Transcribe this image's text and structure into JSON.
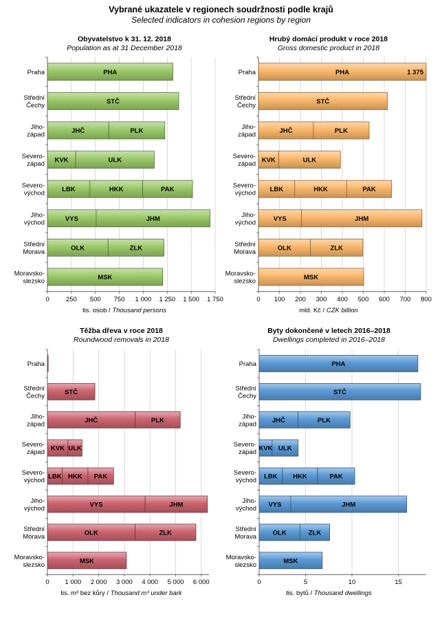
{
  "title": "Vybrané ukazatele v regionech soudržnosti  podle krajů",
  "subtitle": "Selected indicators in cohesion regions  by region",
  "regions": [
    [
      "Praha"
    ],
    [
      "Střední",
      "Čechy"
    ],
    [
      "Jiho-",
      "západ"
    ],
    [
      "Severo-",
      "západ"
    ],
    [
      "Severo-",
      "východ"
    ],
    [
      "Jiho-",
      "východ"
    ],
    [
      "Střední",
      "Morava"
    ],
    [
      "Moravsko-",
      "slezsko"
    ]
  ],
  "colors": {
    "population": "#9bc969",
    "gdp": "#f9b76b",
    "wood": "#cc6470",
    "dwellings": "#5b9ad6"
  },
  "chart_data": [
    {
      "type": "bar",
      "orientation": "horizontal",
      "stacked": true,
      "title": "Obyvatelstvo k 31. 12. 2018",
      "subtitle": "Population as at 31 December 2018",
      "xlabel_cz": "tis. osob / ",
      "xlabel_en": "Thousand persons",
      "xlim": [
        0,
        1750
      ],
      "ticks": [
        0,
        250,
        500,
        750,
        1000,
        1250,
        1500,
        1750
      ],
      "tick_labels": [
        "0",
        "250",
        "500",
        "750",
        "1 000",
        "1 250",
        "1 500",
        "1 750"
      ],
      "grid": true,
      "categories": [
        "Praha",
        "Střední Čechy",
        "Jihozápad",
        "Severozápad",
        "Severovýchod",
        "Jihovýchod",
        "Střední Morava",
        "Moravskoslezsko"
      ],
      "segments": [
        [
          {
            "label": "PHA",
            "value": 1309
          }
        ],
        [
          {
            "label": "STČ",
            "value": 1370
          }
        ],
        [
          {
            "label": "JHČ",
            "value": 640
          },
          {
            "label": "PLK",
            "value": 585
          }
        ],
        [
          {
            "label": "KVK",
            "value": 295
          },
          {
            "label": "ULK",
            "value": 820
          }
        ],
        [
          {
            "label": "LBK",
            "value": 443
          },
          {
            "label": "HKK",
            "value": 551
          },
          {
            "label": "PAK",
            "value": 520
          }
        ],
        [
          {
            "label": "VYS",
            "value": 509
          },
          {
            "label": "JHM",
            "value": 1188
          }
        ],
        [
          {
            "label": "OLK",
            "value": 633
          },
          {
            "label": "ZLK",
            "value": 583
          }
        ],
        [
          {
            "label": "MSK",
            "value": 1203
          }
        ]
      ],
      "value_label": null
    },
    {
      "type": "bar",
      "orientation": "horizontal",
      "stacked": true,
      "title": "Hrubý domácí produkt v roce 2018",
      "subtitle": "Gross domestic product in 2018",
      "xlabel_cz": "mld. Kč / ",
      "xlabel_en": "CZK billion",
      "xlim": [
        0,
        800
      ],
      "ticks": [
        0,
        100,
        200,
        300,
        400,
        500,
        600,
        700,
        800
      ],
      "tick_labels": [
        "0",
        "100",
        "200",
        "300",
        "400",
        "500",
        "600",
        "700",
        "800"
      ],
      "grid": true,
      "categories": [
        "Praha",
        "Střední Čechy",
        "Jihozápad",
        "Severozápad",
        "Severovýchod",
        "Jihovýchod",
        "Střední Morava",
        "Moravskoslezsko"
      ],
      "segments": [
        [
          {
            "label": "PHA",
            "value": 1375
          }
        ],
        [
          {
            "label": "STČ",
            "value": 615
          }
        ],
        [
          {
            "label": "JHČ",
            "value": 262
          },
          {
            "label": "PLK",
            "value": 266
          }
        ],
        [
          {
            "label": "KVK",
            "value": 97
          },
          {
            "label": "ULK",
            "value": 294
          }
        ],
        [
          {
            "label": "LBK",
            "value": 173
          },
          {
            "label": "HKK",
            "value": 248
          },
          {
            "label": "PAK",
            "value": 214
          }
        ],
        [
          {
            "label": "VYS",
            "value": 205
          },
          {
            "label": "JHM",
            "value": 575
          }
        ],
        [
          {
            "label": "OLK",
            "value": 248
          },
          {
            "label": "ZLK",
            "value": 250
          }
        ],
        [
          {
            "label": "MSK",
            "value": 502
          }
        ]
      ],
      "value_label": {
        "row": 0,
        "text": "1 375"
      }
    },
    {
      "type": "bar",
      "orientation": "horizontal",
      "stacked": true,
      "title": "Těžba dřeva v roce 2018",
      "subtitle": "Roundwood removals in 2018",
      "xlabel_cz": "tis. m³ bez kůry / ",
      "xlabel_en": "Thousand m³ under bark",
      "xlim": [
        0,
        6300
      ],
      "ticks": [
        0,
        1000,
        2000,
        3000,
        4000,
        5000,
        6000
      ],
      "tick_labels": [
        "0",
        "1 000",
        "2 000",
        "3 000",
        "4 000",
        "5 000",
        "6 000"
      ],
      "grid": true,
      "categories": [
        "Praha",
        "Střední Čechy",
        "Jihozápad",
        "Severozápad",
        "Severovýchod",
        "Jihovýchod",
        "Střední Morava",
        "Moravskoslezsko"
      ],
      "segments": [
        [
          {
            "label": "",
            "value": 30
          }
        ],
        [
          {
            "label": "STČ",
            "value": 1850
          }
        ],
        [
          {
            "label": "JHČ",
            "value": 3420
          },
          {
            "label": "PLK",
            "value": 1760
          }
        ],
        [
          {
            "label": "KVK",
            "value": 800
          },
          {
            "label": "ULK",
            "value": 550
          }
        ],
        [
          {
            "label": "LBK",
            "value": 580
          },
          {
            "label": "HKK",
            "value": 1000
          },
          {
            "label": "PAK",
            "value": 1000
          }
        ],
        [
          {
            "label": "VYS",
            "value": 3810
          },
          {
            "label": "JHM",
            "value": 2430
          }
        ],
        [
          {
            "label": "OLK",
            "value": 3420
          },
          {
            "label": "ZLK",
            "value": 2370
          }
        ],
        [
          {
            "label": "MSK",
            "value": 3080
          }
        ]
      ],
      "value_label": null
    },
    {
      "type": "bar",
      "orientation": "horizontal",
      "stacked": true,
      "title": "Byty dokončené v letech 2016–2018",
      "subtitle": "Dwellings completed in 2016–2018",
      "xlabel_cz": "tis. bytů / ",
      "xlabel_en": "Thousand dwellings",
      "xlim": [
        0,
        18
      ],
      "ticks": [
        0,
        5,
        10,
        15
      ],
      "tick_labels": [
        "0",
        "5",
        "10",
        "15"
      ],
      "grid": true,
      "categories": [
        "Praha",
        "Střední Čechy",
        "Jihozápad",
        "Severozápad",
        "Severovýchod",
        "Jihovýchod",
        "Střední Morava",
        "Moravskoslezsko"
      ],
      "segments": [
        [
          {
            "label": "PHA",
            "value": 17.1
          }
        ],
        [
          {
            "label": "STČ",
            "value": 17.4
          }
        ],
        [
          {
            "label": "JHČ",
            "value": 4.2
          },
          {
            "label": "PLK",
            "value": 5.6
          }
        ],
        [
          {
            "label": "KVK",
            "value": 1.4
          },
          {
            "label": "ULK",
            "value": 2.8
          }
        ],
        [
          {
            "label": "LBK",
            "value": 2.5
          },
          {
            "label": "HKK",
            "value": 3.8
          },
          {
            "label": "PAK",
            "value": 4.0
          }
        ],
        [
          {
            "label": "VYS",
            "value": 3.4
          },
          {
            "label": "JHM",
            "value": 12.5
          }
        ],
        [
          {
            "label": "OLK",
            "value": 4.4
          },
          {
            "label": "ZLK",
            "value": 3.2
          }
        ],
        [
          {
            "label": "MSK",
            "value": 6.8
          }
        ]
      ],
      "value_label": null
    }
  ]
}
